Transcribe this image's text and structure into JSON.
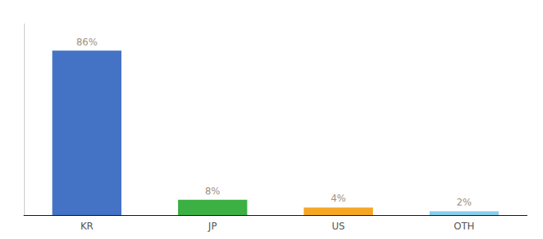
{
  "chart_data": {
    "type": "bar",
    "categories": [
      "KR",
      "JP",
      "US",
      "OTH"
    ],
    "values": [
      86,
      8,
      4,
      2
    ],
    "value_labels": [
      "86%",
      "8%",
      "4%",
      "2%"
    ],
    "colors": [
      "#4472c4",
      "#3cb043",
      "#f5a623",
      "#87ceeb"
    ],
    "ylim": [
      0,
      100
    ],
    "grid": false,
    "data_labels": true,
    "tick_labels": "x"
  }
}
